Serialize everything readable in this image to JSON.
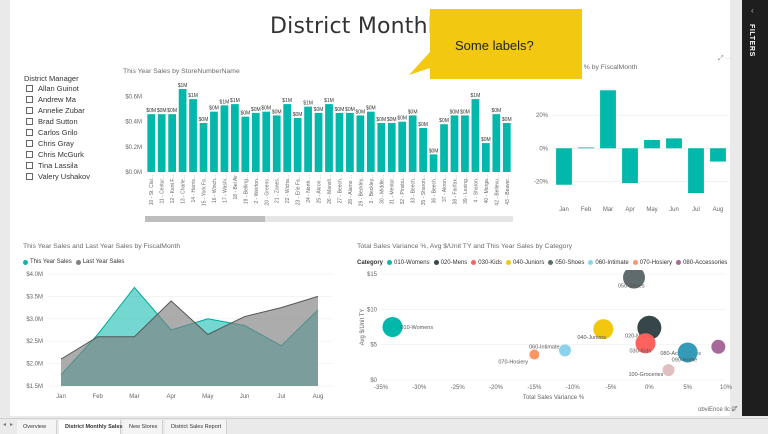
{
  "report": {
    "title": "District Monthly Sales"
  },
  "filters_pane": {
    "label": "FILTERS",
    "chevron": "‹"
  },
  "callout": {
    "text": "Some labels?"
  },
  "slicer": {
    "title": "District Manager",
    "items": [
      "Allan Guinot",
      "Andrew Ma",
      "Annelie Zubar",
      "Brad Sutton",
      "Carlos Grilo",
      "Chris Gray",
      "Chris McGurk",
      "Tina Lassila",
      "Valery Ushakov"
    ]
  },
  "visual_icons": "⤢ ⋯",
  "watermark": "obviEnce llc ©",
  "tabs": {
    "nav_prev": "◂",
    "nav_next": "▸",
    "items": [
      {
        "label": "Overview",
        "active": false
      },
      {
        "label": "District Monthly Sales",
        "active": true
      },
      {
        "label": "New Stores",
        "active": false
      },
      {
        "label": "District Sales Report",
        "active": false
      }
    ]
  },
  "colors": {
    "teal": "#01b8aa",
    "gray": "#808080",
    "accent": "#f2c811"
  },
  "chart_data": [
    {
      "type": "bar",
      "title": "This Year Sales by StoreNumberName",
      "ylim": [
        0,
        0.7
      ],
      "yticks": [
        "$0.0M",
        "$0.2M",
        "$0.4M",
        "$0.6M"
      ],
      "ytick_values": [
        0,
        0.2,
        0.4,
        0.6
      ],
      "categories": [
        "10 - St. Clai...",
        "11 - Centur...",
        "12 - Kent F...",
        "13 - Charle...",
        "14 - Harris...",
        "15 - York Fa...",
        "16 - Winch...",
        "17 - Washi...",
        "18 - Bel Air",
        "19 - Belling...",
        "2 - Weirton...",
        "20 - Greens...",
        "21 - Zanes...",
        "22 - Wicha...",
        "23 - Erie Fa...",
        "24 - North ...",
        "25 - Akron ...",
        "26 - Mansfi...",
        "27 - Beech...",
        "28 - Alamo ...",
        "29 - Beckley...",
        "3 - Beckley...",
        "30 - Middle...",
        "31 - Mentor...",
        "32 - Pinsbu...",
        "33 - Beech...",
        "35 - Sharon...",
        "36 - Beech...",
        "37 - Akron...",
        "38 - Fairfax...",
        "39 - Lexing...",
        "4 - Sharon...",
        "40 - Morga...",
        "42 - Bellevu...",
        "43 - Beaver..."
      ],
      "values": [
        0.46,
        0.46,
        0.46,
        0.66,
        0.58,
        0.39,
        0.48,
        0.53,
        0.54,
        0.44,
        0.47,
        0.48,
        0.45,
        0.54,
        0.43,
        0.52,
        0.47,
        0.54,
        0.47,
        0.47,
        0.45,
        0.48,
        0.39,
        0.39,
        0.4,
        0.45,
        0.35,
        0.14,
        0.38,
        0.45,
        0.45,
        0.58,
        0.23,
        0.46,
        0.39
      ],
      "data_labels": [
        "$0M",
        "$0M",
        "$0M",
        "$1M",
        "$1M",
        "$0M",
        "$0M",
        "$1M",
        "$1M",
        "$0M",
        "$0M",
        "$0M",
        "$0M",
        "$1M",
        "$0M",
        "$1M",
        "$0M",
        "$1M",
        "$0M",
        "$0M",
        "$0M",
        "$0M",
        "$0M",
        "$0M",
        "$0M",
        "$0M",
        "$0M",
        "$0M",
        "$0M",
        "$0M",
        "$0M",
        "$1M",
        "$0M",
        "$0M",
        "$0M"
      ]
    },
    {
      "type": "bar",
      "title": "...iance % by FiscalMonth",
      "categories": [
        "Jan",
        "Feb",
        "Mar",
        "Apr",
        "May",
        "Jun",
        "Jul",
        "Aug"
      ],
      "values": [
        -22,
        0.5,
        35,
        -21,
        5,
        6,
        -27,
        -8
      ],
      "ylim": [
        -30,
        40
      ],
      "yticks": [
        "-20%",
        "0%",
        "20%"
      ],
      "ytick_values": [
        -20,
        0,
        20
      ]
    },
    {
      "type": "area",
      "title": "This Year Sales and Last Year Sales by FiscalMonth",
      "categories": [
        "Jan",
        "Feb",
        "Mar",
        "Apr",
        "May",
        "Jun",
        "Jul",
        "Aug"
      ],
      "ylim": [
        1.5,
        4.0
      ],
      "yticks": [
        "$1.5M",
        "$2.0M",
        "$2.5M",
        "$3.0M",
        "$3.5M",
        "$4.0M"
      ],
      "ytick_values": [
        1.5,
        2.0,
        2.5,
        3.0,
        3.5,
        4.0
      ],
      "series": [
        {
          "name": "This Year Sales",
          "color": "#01b8aa",
          "values": [
            1.75,
            2.65,
            3.7,
            2.75,
            3.0,
            2.85,
            2.4,
            3.2
          ]
        },
        {
          "name": "Last Year Sales",
          "color": "#808080",
          "values": [
            2.1,
            2.6,
            2.6,
            3.4,
            2.65,
            3.05,
            3.25,
            3.5
          ]
        }
      ]
    },
    {
      "type": "scatter",
      "title": "Total Sales Variance %, Avg $/Unit TY and This Year Sales by Category",
      "legend_label": "Category",
      "legend_more": "▸",
      "xlabel": "Total Sales Variance %",
      "ylabel": "Avg $/Unit TY",
      "xlim": [
        -35,
        10
      ],
      "ylim": [
        0,
        15
      ],
      "xticks": [
        "-35%",
        "-30%",
        "-25%",
        "-20%",
        "-15%",
        "-10%",
        "-5%",
        "0%",
        "5%",
        "10%"
      ],
      "xtick_values": [
        -35,
        -30,
        -25,
        -20,
        -15,
        -10,
        -5,
        0,
        5,
        10
      ],
      "yticks": [
        "$0",
        "$5",
        "$10",
        "$15"
      ],
      "ytick_values": [
        0,
        5,
        10,
        15
      ],
      "points": [
        {
          "category": "010-Womens",
          "x": -33.5,
          "y": 7.5,
          "size": 10,
          "color": "#01b8aa"
        },
        {
          "category": "020-Mens",
          "x": 0,
          "y": 7.4,
          "size": 12,
          "color": "#374649"
        },
        {
          "category": "030-Kids",
          "x": -0.5,
          "y": 5.2,
          "size": 10,
          "color": "#fd625e"
        },
        {
          "category": "040-Juniors",
          "x": -6,
          "y": 7.2,
          "size": 10,
          "color": "#f2c80f"
        },
        {
          "category": "050-Shoes",
          "x": -2,
          "y": 14.5,
          "size": 11,
          "color": "#5f6b6d"
        },
        {
          "category": "060-Intimate",
          "x": -11,
          "y": 4.2,
          "size": 6,
          "color": "#8ad4eb"
        },
        {
          "category": "070-Hosiery",
          "x": -15,
          "y": 3.6,
          "size": 5,
          "color": "#fe9666"
        },
        {
          "category": "080-Accessories",
          "x": 9,
          "y": 4.7,
          "size": 7,
          "color": "#a66999"
        },
        {
          "category": "090-Home",
          "x": 5,
          "y": 3.9,
          "size": 10,
          "color": "#3599b8"
        },
        {
          "category": "100-Groceries",
          "x": 2.5,
          "y": 1.4,
          "size": 6,
          "color": "#dfbfbf"
        }
      ],
      "legend": [
        {
          "name": "010-Womens",
          "color": "#01b8aa"
        },
        {
          "name": "020-Mens",
          "color": "#374649"
        },
        {
          "name": "030-Kids",
          "color": "#fd625e"
        },
        {
          "name": "040-Juniors",
          "color": "#f2c80f"
        },
        {
          "name": "050-Shoes",
          "color": "#5f6b6d"
        },
        {
          "name": "060-Intimate",
          "color": "#8ad4eb"
        },
        {
          "name": "070-Hosiery",
          "color": "#fe9666"
        },
        {
          "name": "080-Accessories",
          "color": "#a66999"
        }
      ]
    }
  ]
}
